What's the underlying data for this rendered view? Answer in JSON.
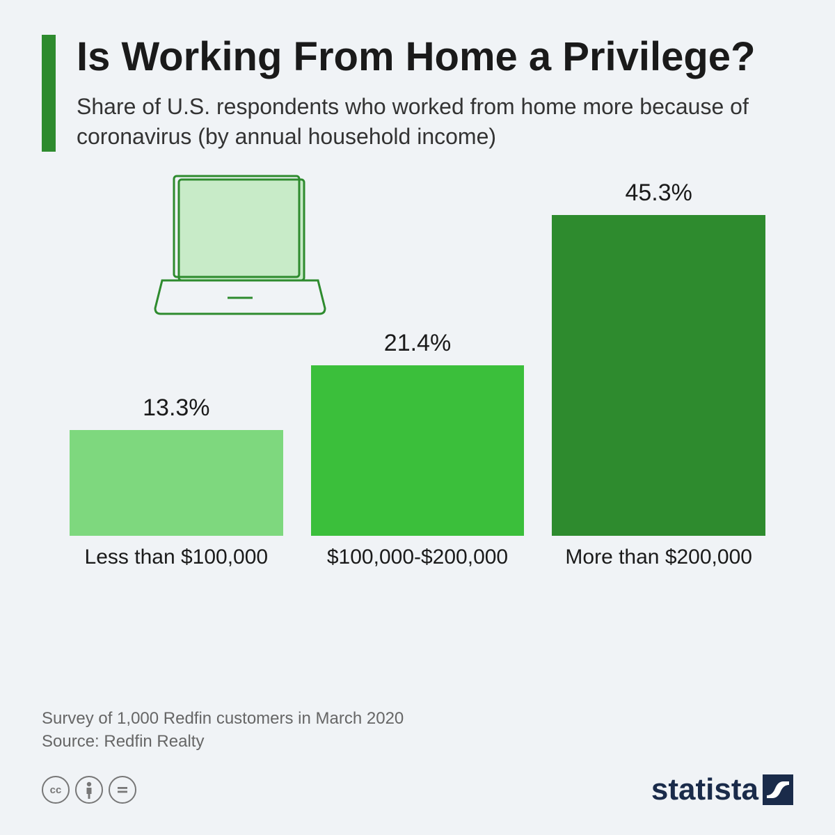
{
  "header": {
    "title": "Is Working From Home a Privilege?",
    "subtitle": "Share of U.S. respondents who worked from home more because of coronavirus (by annual household income)"
  },
  "chart": {
    "type": "bar",
    "max_value": 45.3,
    "display_max_height": 520,
    "background_color": "#f0f3f6",
    "value_fontsize": 34,
    "label_fontsize": 30,
    "bars": [
      {
        "label": "Less than $100,000",
        "value": 13.3,
        "value_display": "13.3%",
        "color": "#7ed87e"
      },
      {
        "label": "$100,000-$200,000",
        "value": 21.4,
        "value_display": "21.4%",
        "color": "#3bbf3b"
      },
      {
        "label": "More than $200,000",
        "value": 45.3,
        "value_display": "45.3%",
        "color": "#2e8b2e"
      }
    ]
  },
  "laptop_icon": {
    "stroke": "#2e8b2e",
    "fill": "#c8ebc8"
  },
  "footer": {
    "survey_line1": "Survey of 1,000 Redfin customers in March 2020",
    "survey_line2": "Source: Redfin Realty",
    "brand": "statista"
  },
  "colors": {
    "accent": "#2e8b2e",
    "text_primary": "#1a1a1a",
    "text_secondary": "#666",
    "brand": "#1a2b4a"
  }
}
